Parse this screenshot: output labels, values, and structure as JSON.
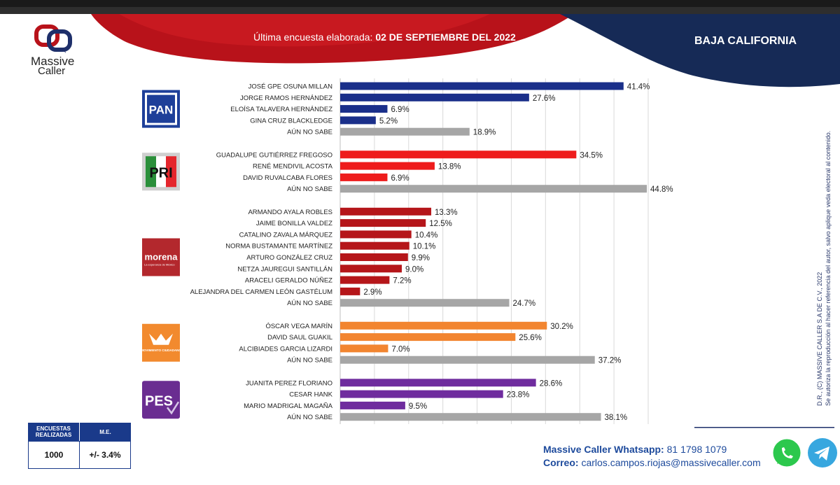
{
  "header": {
    "title_prefix": "Última encuesta elaborada:",
    "title_date": "02 DE SEPTIEMBRE DEL 2022",
    "region": "BAJA CALIFORNIA"
  },
  "brand": {
    "name_line1": "Massive",
    "name_line2": "Caller"
  },
  "parties": [
    {
      "name": "PAN",
      "logo_text": "PAN",
      "color": "#1a2f8a",
      "logo_color": "#1e3f99",
      "candidates": [
        {
          "label": "JOSÉ GPE OSUNA MILLAN",
          "value": 41.4,
          "value_label": "41.4%"
        },
        {
          "label": "JORGE RAMOS HERNÁNDEZ",
          "value": 27.6,
          "value_label": "27.6%"
        },
        {
          "label": "ELOÍSA TALAVERA HERNÁNDEZ",
          "value": 6.9,
          "value_label": "6.9%"
        },
        {
          "label": "GINA CRUZ  BLACKLEDGE",
          "value": 5.2,
          "value_label": "5.2%"
        },
        {
          "label": "AÚN NO SABE",
          "value": 18.9,
          "value_label": "18.9%",
          "undecided": true
        }
      ]
    },
    {
      "name": "PRI",
      "logo_text": "PRI",
      "color": "#ee1c1c",
      "logo_color": "#2a8f3a",
      "candidates": [
        {
          "label": "GUADALUPE GUTIÉRREZ FREGOSO",
          "value": 34.5,
          "value_label": "34.5%"
        },
        {
          "label": "RENÉ MENDIVIL ACOSTA",
          "value": 13.8,
          "value_label": "13.8%"
        },
        {
          "label": "DAVID RUVALCABA FLORES",
          "value": 6.9,
          "value_label": "6.9%"
        },
        {
          "label": "AÚN NO SABE",
          "value": 44.8,
          "value_label": "44.8%",
          "undecided": true
        }
      ]
    },
    {
      "name": "MORENA",
      "logo_text": "morena",
      "logo_subtext": "La esperanza de México",
      "color": "#b5161a",
      "logo_color": "#b3282d",
      "candidates": [
        {
          "label": "ARMANDO AYALA  ROBLES",
          "value": 13.3,
          "value_label": "13.3%"
        },
        {
          "label": "JAIME BONILLA VALDEZ",
          "value": 12.5,
          "value_label": "12.5%"
        },
        {
          "label": "CATALINO ZAVALA MÁRQUEZ",
          "value": 10.4,
          "value_label": "10.4%"
        },
        {
          "label": "NORMA BUSTAMANTE MARTÍNEZ",
          "value": 10.1,
          "value_label": "10.1%"
        },
        {
          "label": "ARTURO GONZÁLEZ CRUZ",
          "value": 9.9,
          "value_label": "9.9%"
        },
        {
          "label": "NETZA JAUREGUI SANTILLÁN",
          "value": 9.0,
          "value_label": "9.0%"
        },
        {
          "label": "ARACELI GERALDO NÚÑEZ",
          "value": 7.2,
          "value_label": "7.2%"
        },
        {
          "label": "ALEJANDRA DEL CARMEN LEÓN GASTÉLUM",
          "value": 2.9,
          "value_label": "2.9%"
        },
        {
          "label": "AÚN NO SABE",
          "value": 24.7,
          "value_label": "24.7%",
          "undecided": true
        }
      ]
    },
    {
      "name": "MOVIMIENTO CIUDADANO",
      "logo_text": "MOVIMIENTO CIUDADANO",
      "color": "#f28530",
      "logo_color": "#f28a2e",
      "candidates": [
        {
          "label": "ÓSCAR VEGA MARÍN",
          "value": 30.2,
          "value_label": "30.2%"
        },
        {
          "label": "DAVID SAUL GUAKIL",
          "value": 25.6,
          "value_label": "25.6%"
        },
        {
          "label": "ALCIBIADES GARCIA LIZARDI",
          "value": 7.0,
          "value_label": "7.0%"
        },
        {
          "label": "AÚN NO SABE",
          "value": 37.2,
          "value_label": "37.2%",
          "undecided": true
        }
      ]
    },
    {
      "name": "PES",
      "logo_text": "PES",
      "color": "#6f2c9e",
      "logo_color": "#6a2d91",
      "candidates": [
        {
          "label": "JUANITA PEREZ FLORIANO",
          "value": 28.6,
          "value_label": "28.6%"
        },
        {
          "label": "CESAR HANK",
          "value": 23.8,
          "value_label": "23.8%"
        },
        {
          "label": "MARIO MADRIGAL MAGAÑA",
          "value": 9.5,
          "value_label": "9.5%"
        },
        {
          "label": "AÚN NO SABE",
          "value": 38.1,
          "value_label": "38.1%",
          "undecided": true
        }
      ]
    }
  ],
  "chart_data": {
    "type": "bar",
    "orientation": "horizontal",
    "title": "Última encuesta elaborada: 02 DE SEPTIEMBRE DEL 2022",
    "xlim": [
      0,
      45
    ],
    "grid": true,
    "undecided_color": "#a6a6a6"
  },
  "survey": {
    "col1_header": "ENCUESTAS REALIZADAS",
    "col2_header": "M.E.",
    "count": "1000",
    "margin": "+/- 3.4%"
  },
  "contact": {
    "whatsapp_label": "Massive Caller Whatsapp:",
    "whatsapp_number": "81 1798 1079",
    "email_label": "Correo:",
    "email": "carlos.campos.riojas@massivecaller.com"
  },
  "copyright": {
    "line1": "D.R., (C) MASSIVE CALLER S.A DE C.V., 2022",
    "line2": "Se autoriza la reproducción al hacer referencia del autor, salvo aplique veda electoral al contenido."
  },
  "icons": {
    "whatsapp": "whatsapp-icon",
    "telegram": "telegram-icon"
  }
}
